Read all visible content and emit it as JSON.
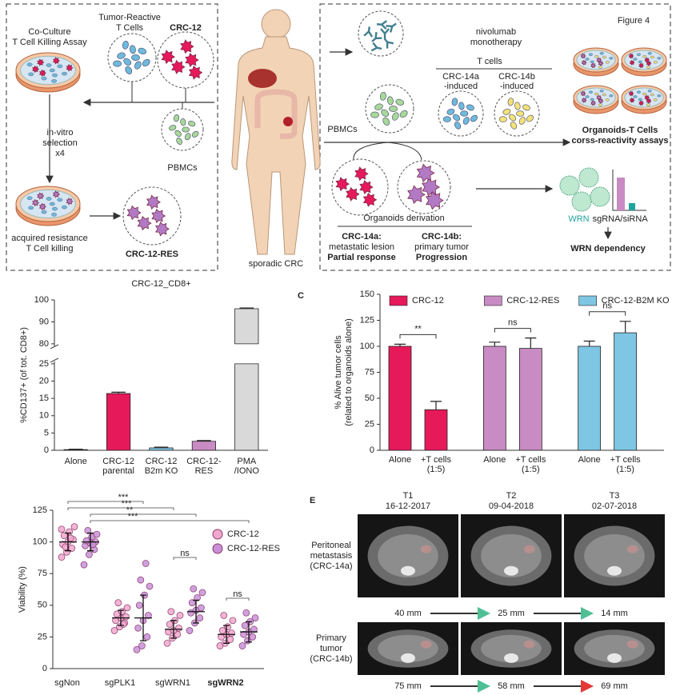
{
  "diagram": {
    "coculture": [
      "Co-Culture",
      "T Cell Killing Assay"
    ],
    "tumor_reactive": [
      "Tumor-Reactive",
      "T Cells"
    ],
    "crc12": "CRC-12",
    "selection": [
      "in-vitro",
      "selection",
      "x4"
    ],
    "pbmcs_left": "PBMCs",
    "resistance": [
      "acquired resistance",
      "T Cell killing"
    ],
    "crc12res": "CRC-12-RES",
    "patient": "sporadic CRC",
    "figure": "Figure 4",
    "nivolumab": [
      "nivolumab",
      "monotherapy"
    ],
    "tcells": "T cells",
    "induced_a": [
      "CRC-14a",
      "-induced"
    ],
    "induced_b": [
      "CRC-14b",
      "-induced"
    ],
    "pbmcs_right": "PBMCs",
    "assays": [
      "Organoids-T Cells",
      "corss-reactivity assays"
    ],
    "derivation": "Organoids derivation",
    "lesion_a": [
      "CRC-14a:",
      "metastatic lesion",
      "Partial response"
    ],
    "lesion_b": [
      "CRC-14b:",
      "primary tumor",
      "Progression"
    ],
    "wrn": [
      "WRN",
      "sgRNA/siRNA"
    ],
    "dependency": "WRN dependency"
  },
  "panel_labels": [
    "C",
    "E"
  ],
  "chart_data": [
    {
      "type": "bar",
      "title": "CRC-12_CD8+",
      "ylabel": "%CD137+ (of tot. CD8+)",
      "categories": [
        "Alone",
        [
          "CRC-12",
          "parental"
        ],
        [
          "CRC-12",
          "B2m KO"
        ],
        [
          "CRC-12-",
          "RES"
        ],
        [
          "PMA",
          "/IONO"
        ]
      ],
      "values": [
        0.2,
        16.4,
        0.7,
        2.6,
        96
      ],
      "errors": [
        0.1,
        0.4,
        0.2,
        0.2,
        0.3
      ],
      "colors": [
        "#222222",
        "#e6195a",
        "#7fc6e4",
        "#c98bc3",
        "#d9d9d9"
      ],
      "ylim": [
        0,
        100
      ],
      "ybreak": [
        25,
        80
      ],
      "yticks": [
        0,
        5,
        10,
        15,
        20,
        25,
        80,
        90,
        100
      ]
    },
    {
      "type": "bar",
      "ylabel": [
        "% Alive tumor cells",
        "(related to organoids alone)"
      ],
      "categories": [
        "Alone",
        [
          "+T cells",
          "(1:5)"
        ]
      ],
      "series": [
        {
          "name": "CRC-12",
          "color": "#e6195a",
          "values": [
            100,
            39
          ],
          "errors": [
            2,
            8
          ],
          "significance": "**"
        },
        {
          "name": "CRC-12-RES",
          "color": "#c98bc3",
          "values": [
            100,
            98
          ],
          "errors": [
            4,
            10
          ],
          "significance": "ns"
        },
        {
          "name": "CRC-12-B2M KO",
          "color": "#7fc6e4",
          "values": [
            100,
            113
          ],
          "errors": [
            5,
            11
          ],
          "significance": "ns"
        }
      ],
      "ylim": [
        0,
        150
      ],
      "yticks": [
        0,
        25,
        50,
        75,
        100,
        125,
        150
      ]
    },
    {
      "type": "scatter",
      "ylabel": "Viability (%)",
      "categories": [
        "sgNon",
        "sgPLK1",
        "sgWRN1",
        "sgWRN2"
      ],
      "series": [
        {
          "name": "CRC-12",
          "color": "#f2a7cc",
          "values": [
            [
              88,
              92,
              95,
              98,
              100,
              102,
              105,
              108,
              112,
              96,
              103,
              110
            ],
            [
              30,
              33,
              36,
              38,
              40,
              41,
              43,
              45,
              48,
              52,
              35
            ],
            [
              20,
              24,
              27,
              29,
              30,
              32,
              35,
              38,
              42,
              45
            ],
            [
              18,
              20,
              23,
              25,
              27,
              28,
              30,
              33,
              38,
              42
            ]
          ],
          "means": [
            100,
            40,
            31,
            27
          ],
          "sd": [
            7,
            6,
            7,
            7
          ]
        },
        {
          "name": "CRC-12-RES",
          "color": "#c890d8",
          "values": [
            [
              82,
              90,
              94,
              97,
              99,
              100,
              101,
              104,
              106,
              109,
              98
            ],
            [
              15,
              18,
              25,
              32,
              38,
              42,
              50,
              58,
              65,
              70,
              83
            ],
            [
              30,
              36,
              40,
              44,
              46,
              48,
              52,
              56,
              60,
              63
            ],
            [
              18,
              22,
              25,
              27,
              29,
              31,
              34,
              37,
              40,
              44
            ]
          ],
          "means": [
            100,
            40,
            45,
            29
          ],
          "sd": [
            7,
            18,
            9,
            8
          ]
        }
      ],
      "annotations": [
        "***",
        "***",
        "**",
        "***",
        "ns",
        "ns"
      ],
      "ylim": [
        0,
        125
      ],
      "yticks": [
        0,
        25,
        50,
        75,
        100,
        125
      ]
    }
  ],
  "panel_e": {
    "timepoints": [
      [
        "T1",
        "16-12-2017"
      ],
      [
        "T2",
        "09-04-2018"
      ],
      [
        "T3",
        "02-07-2018"
      ]
    ],
    "rows": [
      [
        "Peritoneal",
        "metastasis",
        "(CRC-14a)"
      ],
      [
        "Primary",
        "tumor",
        "(CRC-14b)"
      ]
    ],
    "measurements": [
      [
        "40 mm",
        "25 mm",
        "14 mm"
      ],
      [
        "75 mm",
        "58 mm",
        "69 mm"
      ]
    ]
  }
}
